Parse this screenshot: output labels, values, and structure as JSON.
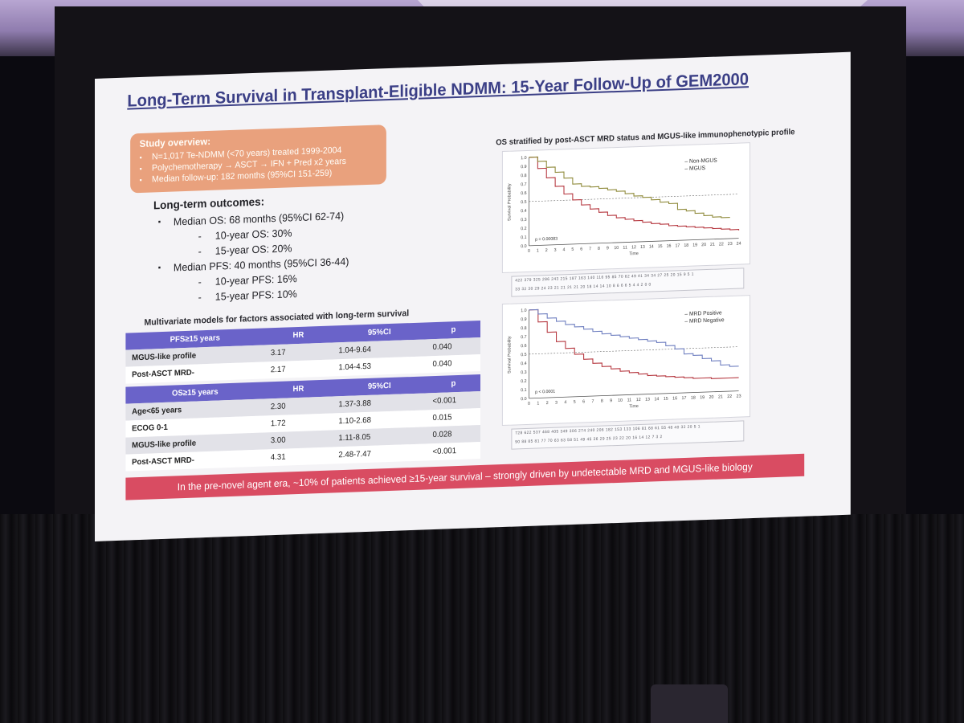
{
  "slide": {
    "title": "Long-Term Survival in Transplant-Eligible NDMM: 15-Year Follow-Up of GEM2000",
    "overview": {
      "heading": "Study overview:",
      "items": [
        "N=1,017 Te-NDMM (<70 years) treated 1999-2004",
        "Polychemotherapy → ASCT → IFN + Pred x2 years",
        "Median follow-up: 182 months (95%CI 151-259)"
      ]
    },
    "outcomes": {
      "heading": "Long-term outcomes:",
      "os": "Median OS: 68 months (95%CI 62-74)",
      "os_10": "10-year OS: 30%",
      "os_15": "15-year OS: 20%",
      "pfs": "Median PFS: 40 months (95%CI 36-44)",
      "pfs_10": "10-year PFS: 16%",
      "pfs_15": "15-year PFS: 10%"
    },
    "multivariate": {
      "title": "Multivariate models for factors associated with long-term survival",
      "pfs_header": [
        "PFS≥15 years",
        "HR",
        "95%CI",
        "p"
      ],
      "pfs_rows": [
        [
          "MGUS-like profile",
          "3.17",
          "1.04-9.64",
          "0.040"
        ],
        [
          "Post-ASCT MRD-",
          "2.17",
          "1.04-4.53",
          "0.040"
        ]
      ],
      "os_header": [
        "OS≥15 years",
        "HR",
        "95%CI",
        "p"
      ],
      "os_rows": [
        [
          "Age<65 years",
          "2.30",
          "1.37-3.88",
          "<0.001"
        ],
        [
          "ECOG 0-1",
          "1.72",
          "1.10-2.68",
          "0.015"
        ],
        [
          "MGUS-like profile",
          "3.00",
          "1.11-8.05",
          "0.028"
        ],
        [
          "Post-ASCT MRD-",
          "4.31",
          "2.48-7.47",
          "<0.001"
        ]
      ]
    },
    "km_heading": "OS stratified by post-ASCT MRD status and MGUS-like immunophenotypic profile",
    "conclusion": "In the pre-novel agent era, ~10% of patients achieved ≥15-year survival – strongly driven by undetectable MRD and MGUS-like biology"
  },
  "chart_data": [
    {
      "type": "line",
      "ylabel": "Survival Probability",
      "xlabel": "Time",
      "xlim": [
        0,
        24
      ],
      "ylim": [
        0,
        1.0
      ],
      "x_ticks": [
        0,
        1,
        2,
        3,
        4,
        5,
        6,
        7,
        8,
        9,
        10,
        11,
        12,
        13,
        14,
        15,
        16,
        17,
        18,
        19,
        20,
        21,
        22,
        23,
        24
      ],
      "y_ticks": [
        "0.0",
        "0.1",
        "0.2",
        "0.3",
        "0.4",
        "0.5",
        "0.6",
        "0.7",
        "0.8",
        "0.9",
        "1.0"
      ],
      "annotation": "p = 0.00083",
      "series": [
        {
          "name": "Non-MGUS",
          "color": "#b5363e",
          "x": [
            0,
            1,
            2,
            3,
            4,
            5,
            6,
            7,
            8,
            9,
            10,
            11,
            12,
            13,
            14,
            15,
            16,
            17,
            18,
            19,
            20,
            21,
            22,
            23,
            24
          ],
          "y": [
            1.0,
            0.87,
            0.76,
            0.66,
            0.57,
            0.5,
            0.44,
            0.39,
            0.35,
            0.31,
            0.28,
            0.26,
            0.24,
            0.22,
            0.2,
            0.19,
            0.17,
            0.16,
            0.15,
            0.14,
            0.13,
            0.12,
            0.11,
            0.1,
            0.09
          ]
        },
        {
          "name": "MGUS",
          "color": "#8f8a3a",
          "x": [
            0,
            1,
            2,
            3,
            4,
            5,
            6,
            7,
            8,
            9,
            10,
            11,
            12,
            13,
            14,
            15,
            16,
            17,
            18,
            19,
            20,
            21,
            22,
            23
          ],
          "y": [
            1.0,
            0.95,
            0.88,
            0.82,
            0.75,
            0.68,
            0.65,
            0.64,
            0.62,
            0.6,
            0.58,
            0.55,
            0.52,
            0.5,
            0.47,
            0.44,
            0.42,
            0.35,
            0.33,
            0.3,
            0.27,
            0.25,
            0.24,
            0.24
          ]
        }
      ],
      "risk_rows": [
        "422 379 325 286 243 215 187 163 140 116 95 85 70 62 49 41 34 34 27 25 20 15 9 5 1",
        "33 32 30 29 24 23 21 21 21 21 20 18 14 14 10 8 6 6 6 5 4 4 2 0 0"
      ]
    },
    {
      "type": "line",
      "ylabel": "Survival Probability",
      "xlabel": "Time",
      "xlim": [
        0,
        23
      ],
      "ylim": [
        0,
        1.0
      ],
      "x_ticks": [
        0,
        1,
        2,
        3,
        4,
        5,
        6,
        7,
        8,
        9,
        10,
        11,
        12,
        13,
        14,
        15,
        16,
        17,
        18,
        19,
        20,
        21,
        22,
        23
      ],
      "y_ticks": [
        "0.0",
        "0.1",
        "0.2",
        "0.3",
        "0.4",
        "0.5",
        "0.6",
        "0.7",
        "0.8",
        "0.9",
        "1.0"
      ],
      "annotation": "p < 0.0001",
      "series": [
        {
          "name": "MRD Positive",
          "color": "#b5363e",
          "x": [
            0,
            1,
            2,
            3,
            4,
            5,
            6,
            7,
            8,
            9,
            10,
            11,
            12,
            13,
            14,
            15,
            16,
            17,
            18,
            19,
            20,
            21,
            22,
            23
          ],
          "y": [
            1.0,
            0.86,
            0.74,
            0.63,
            0.55,
            0.48,
            0.42,
            0.37,
            0.33,
            0.3,
            0.27,
            0.25,
            0.23,
            0.21,
            0.2,
            0.19,
            0.18,
            0.17,
            0.16,
            0.16,
            0.15,
            0.15,
            0.15,
            0.15
          ]
        },
        {
          "name": "MRD Negative",
          "color": "#6f7fc0",
          "x": [
            0,
            1,
            2,
            3,
            4,
            5,
            6,
            7,
            8,
            9,
            10,
            11,
            12,
            13,
            14,
            15,
            16,
            17,
            18,
            19,
            20,
            21,
            22,
            23
          ],
          "y": [
            1.0,
            0.95,
            0.9,
            0.86,
            0.82,
            0.79,
            0.76,
            0.73,
            0.7,
            0.68,
            0.66,
            0.64,
            0.62,
            0.6,
            0.58,
            0.54,
            0.5,
            0.44,
            0.42,
            0.38,
            0.35,
            0.3,
            0.28,
            0.28
          ]
        }
      ],
      "risk_rows": [
        "728 622 537 468 405 349 306 274 240 206 182 153 133 106 81 68 61 55 48 40 32 20 5 1",
        "90 88 85 81 77 70 63 63 58 51 49 45 36 29 25 23 22 20 16 14 12 7 3 2"
      ]
    }
  ]
}
